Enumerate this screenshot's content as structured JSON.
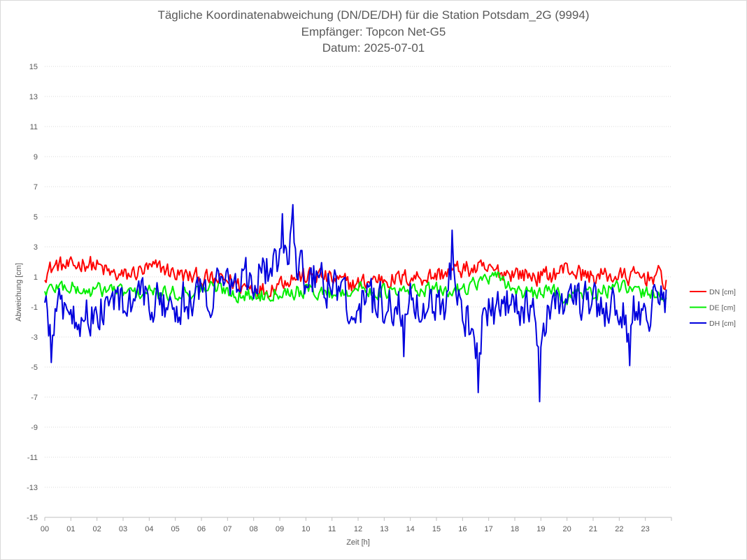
{
  "chart_data": {
    "type": "line",
    "title": "Tägliche Koordinatenabweichung (DN/DE/DH) für die Station Potsdam_2G (9994)",
    "subtitle": "Empfänger: Topcon Net-G5",
    "date_line": "Datum: 2025-07-01",
    "xlabel": "Zeit [h]",
    "ylabel": "Abweichung [cm]",
    "xlim": [
      0,
      24
    ],
    "ylim": [
      -15,
      15
    ],
    "x_ticks": [
      "00",
      "01",
      "02",
      "03",
      "04",
      "05",
      "06",
      "07",
      "08",
      "09",
      "10",
      "11",
      "12",
      "13",
      "14",
      "15",
      "16",
      "17",
      "18",
      "19",
      "20",
      "21",
      "22",
      "23"
    ],
    "y_ticks": [
      15,
      13,
      11,
      9,
      7,
      5,
      3,
      1,
      -1,
      -3,
      -5,
      -7,
      -9,
      -11,
      -13,
      -15
    ],
    "grid": "horizontal-dotted",
    "legend_position": "right",
    "sample_interval_h": 0.05,
    "series": [
      {
        "name": "DN [cm]",
        "color": "#ff0000",
        "x": [
          0.0,
          0.5,
          1.0,
          1.5,
          2.0,
          2.5,
          3.0,
          3.5,
          4.0,
          4.5,
          5.0,
          5.5,
          6.0,
          6.5,
          7.0,
          7.5,
          8.0,
          8.5,
          9.0,
          9.5,
          10.0,
          10.5,
          11.0,
          11.5,
          12.0,
          12.5,
          13.0,
          13.5,
          14.0,
          14.5,
          15.0,
          15.5,
          16.0,
          16.5,
          17.0,
          17.5,
          18.0,
          18.5,
          19.0,
          19.5,
          20.0,
          20.5,
          21.0,
          21.5,
          22.0,
          22.5,
          23.0,
          23.5,
          23.8
        ],
        "values": [
          1.3,
          1.8,
          1.6,
          2.0,
          1.7,
          1.2,
          1.0,
          1.3,
          1.5,
          1.6,
          1.2,
          1.0,
          0.9,
          0.7,
          0.8,
          0.4,
          0.3,
          0.1,
          0.7,
          1.0,
          1.0,
          1.1,
          0.8,
          0.6,
          0.5,
          0.8,
          0.9,
          0.8,
          1.0,
          1.0,
          1.1,
          1.4,
          1.5,
          1.5,
          1.4,
          1.3,
          1.3,
          1.1,
          1.0,
          1.2,
          1.6,
          1.2,
          1.0,
          1.1,
          1.0,
          1.0,
          1.0,
          1.1,
          0.6
        ]
      },
      {
        "name": "DE [cm]",
        "color": "#00ee00",
        "x": [
          0.0,
          0.5,
          1.0,
          1.5,
          2.0,
          2.5,
          3.0,
          3.5,
          4.0,
          4.5,
          5.0,
          5.5,
          6.0,
          6.5,
          7.0,
          7.5,
          8.0,
          8.5,
          9.0,
          9.5,
          10.0,
          10.5,
          11.0,
          11.5,
          12.0,
          12.5,
          13.0,
          13.5,
          14.0,
          14.5,
          15.0,
          15.5,
          16.0,
          16.5,
          17.0,
          17.5,
          18.0,
          18.5,
          19.0,
          19.5,
          20.0,
          20.5,
          21.0,
          21.5,
          22.0,
          22.5,
          23.0,
          23.5,
          23.8
        ],
        "values": [
          0.0,
          0.4,
          0.3,
          0.0,
          0.1,
          0.2,
          0.0,
          -0.1,
          0.0,
          -0.2,
          -0.1,
          0.0,
          0.2,
          0.3,
          0.1,
          -0.2,
          -0.3,
          -0.1,
          0.1,
          0.0,
          0.1,
          0.0,
          -0.1,
          0.1,
          0.2,
          0.1,
          0.0,
          -0.1,
          0.1,
          0.2,
          0.1,
          0.0,
          0.3,
          0.6,
          0.9,
          0.8,
          0.2,
          -0.2,
          -0.1,
          0.1,
          -0.4,
          0.0,
          -0.1,
          0.1,
          0.3,
          0.0,
          -0.1,
          0.0,
          -0.6
        ]
      },
      {
        "name": "DH [cm]",
        "color": "#0000dd",
        "x": [
          0.0,
          0.5,
          1.0,
          1.5,
          2.0,
          2.5,
          3.0,
          3.5,
          4.0,
          4.5,
          5.0,
          5.5,
          6.0,
          6.5,
          7.0,
          7.5,
          8.0,
          8.5,
          9.0,
          9.5,
          10.0,
          10.5,
          11.0,
          11.5,
          12.0,
          12.5,
          13.0,
          13.5,
          14.0,
          14.5,
          15.0,
          15.5,
          16.0,
          16.5,
          17.0,
          17.5,
          18.0,
          18.5,
          19.0,
          19.5,
          20.0,
          20.5,
          21.0,
          21.5,
          22.0,
          22.5,
          23.0,
          23.5,
          23.8
        ],
        "values": [
          -1.5,
          -1.0,
          -1.2,
          -1.6,
          -1.3,
          -0.8,
          -0.9,
          -0.7,
          -0.5,
          -1.0,
          -1.0,
          -0.5,
          -0.3,
          0.2,
          1.2,
          1.0,
          0.9,
          1.5,
          2.2,
          2.8,
          1.0,
          0.8,
          0.4,
          -0.2,
          -0.8,
          -0.7,
          -0.9,
          -1.0,
          -0.6,
          -0.5,
          -0.7,
          -0.6,
          -1.0,
          -2.8,
          -1.2,
          -1.0,
          -1.1,
          -0.9,
          -1.8,
          -0.7,
          -0.6,
          -0.8,
          -1.0,
          -1.1,
          -1.2,
          -1.5,
          -1.0,
          -0.9,
          -0.2
        ],
        "extremes": [
          {
            "x": 0.25,
            "y": -4.7
          },
          {
            "x": 9.1,
            "y": 5.2
          },
          {
            "x": 9.5,
            "y": 5.8
          },
          {
            "x": 15.6,
            "y": 4.1
          },
          {
            "x": 16.6,
            "y": -6.7
          },
          {
            "x": 18.95,
            "y": -7.3
          },
          {
            "x": 13.75,
            "y": -4.3
          },
          {
            "x": 22.4,
            "y": -4.9
          }
        ]
      }
    ]
  }
}
